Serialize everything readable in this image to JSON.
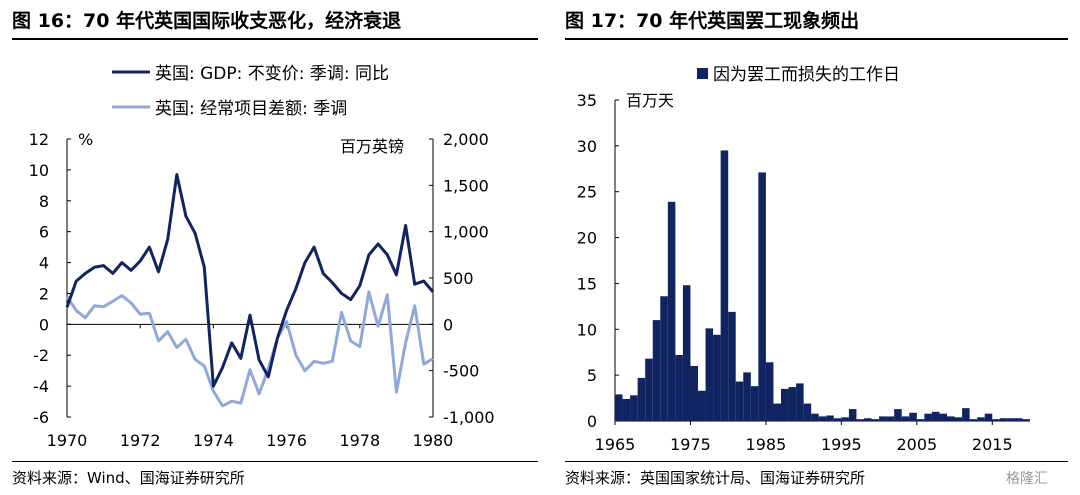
{
  "left_panel": {
    "title": "图 16：70 年代英国国际收支恶化，经济衰退",
    "source": "资料来源：Wind、国海证券研究所"
  },
  "right_panel": {
    "title": "图 17：70 年代英国罢工现象频出",
    "source": "资料来源：英国国家统计局、国海证券研究所"
  },
  "watermark": "格隆汇",
  "colors": {
    "dark_navy": "#0f2461",
    "light_blue": "#8fa9d9",
    "axis": "#000000"
  },
  "chart_data": [
    {
      "type": "line",
      "title": "",
      "x_ticks": [
        "1970",
        "1972",
        "1974",
        "1976",
        "1978",
        "1980"
      ],
      "xlim": [
        1970,
        1980
      ],
      "y_left": {
        "unit": "%",
        "ylim": [
          -6,
          12
        ],
        "ticks": [
          "12",
          "10",
          "8",
          "6",
          "4",
          "2",
          "0",
          "-2",
          "-4",
          "-6"
        ]
      },
      "y_right": {
        "unit": "百万英镑",
        "ylim": [
          -1000,
          2000
        ],
        "ticks": [
          "2,000",
          "1,500",
          "1,000",
          "500",
          "0",
          "-500",
          "-1,000"
        ]
      },
      "legend_position": "top-left",
      "series": [
        {
          "name": "英国: GDP: 不变价: 季调: 同比",
          "axis": "left",
          "color": "#0f2461",
          "x": [
            1970.0,
            1970.25,
            1970.5,
            1970.75,
            1971.0,
            1971.25,
            1971.5,
            1971.75,
            1972.0,
            1972.25,
            1972.5,
            1972.75,
            1973.0,
            1973.25,
            1973.5,
            1973.75,
            1974.0,
            1974.25,
            1974.5,
            1974.75,
            1975.0,
            1975.25,
            1975.5,
            1975.75,
            1976.0,
            1976.25,
            1976.5,
            1976.75,
            1977.0,
            1977.25,
            1977.5,
            1977.75,
            1978.0,
            1978.25,
            1978.5,
            1978.75,
            1979.0,
            1979.25,
            1979.5,
            1979.75,
            1980.0
          ],
          "values": [
            1.1,
            2.8,
            3.3,
            3.7,
            3.8,
            3.3,
            4.0,
            3.5,
            4.1,
            5.0,
            3.4,
            5.5,
            9.7,
            7.0,
            5.9,
            3.7,
            -4.0,
            -2.8,
            -1.2,
            -2.2,
            0.6,
            -2.3,
            -3.4,
            -0.9,
            0.9,
            2.3,
            4.0,
            5.0,
            3.3,
            2.7,
            2.0,
            1.6,
            2.5,
            4.5,
            5.2,
            4.5,
            3.2,
            6.4,
            2.6,
            2.8,
            2.1
          ]
        },
        {
          "name": "英国: 经常项目差额: 季调",
          "axis": "right",
          "color": "#8fa9d9",
          "x": [
            1970.0,
            1970.25,
            1970.5,
            1970.75,
            1971.0,
            1971.25,
            1971.5,
            1971.75,
            1972.0,
            1972.25,
            1972.5,
            1972.75,
            1973.0,
            1973.25,
            1973.5,
            1973.75,
            1974.0,
            1974.25,
            1974.5,
            1974.75,
            1975.0,
            1975.25,
            1975.5,
            1975.75,
            1976.0,
            1976.25,
            1976.5,
            1976.75,
            1977.0,
            1977.25,
            1977.5,
            1977.75,
            1978.0,
            1978.25,
            1978.5,
            1978.75,
            1979.0,
            1979.25,
            1979.5,
            1979.75,
            1980.0
          ],
          "values": [
            300,
            150,
            70,
            200,
            190,
            250,
            310,
            230,
            110,
            120,
            -180,
            -80,
            -250,
            -160,
            -380,
            -450,
            -720,
            -880,
            -830,
            -850,
            -490,
            -750,
            -480,
            -150,
            30,
            -330,
            -500,
            -400,
            -420,
            -400,
            130,
            -180,
            -240,
            350,
            -20,
            320,
            -730,
            -200,
            200,
            -430,
            -370
          ]
        }
      ]
    },
    {
      "type": "bar",
      "title": "",
      "y_unit": "百万天",
      "ylim": [
        0,
        35
      ],
      "y_ticks": [
        "35",
        "30",
        "25",
        "20",
        "15",
        "10",
        "5",
        "0"
      ],
      "x_ticks": [
        "1965",
        "1975",
        "1985",
        "1995",
        "2005",
        "2015"
      ],
      "legend_position": "top",
      "series": [
        {
          "name": "因为罢工而损失的工作日",
          "color": "#0f2461",
          "x": [
            1965,
            1966,
            1967,
            1968,
            1969,
            1970,
            1971,
            1972,
            1973,
            1974,
            1975,
            1976,
            1977,
            1978,
            1979,
            1980,
            1981,
            1982,
            1983,
            1984,
            1985,
            1986,
            1987,
            1988,
            1989,
            1990,
            1991,
            1992,
            1993,
            1994,
            1995,
            1996,
            1997,
            1998,
            1999,
            2000,
            2001,
            2002,
            2003,
            2004,
            2005,
            2006,
            2007,
            2008,
            2009,
            2010,
            2011,
            2012,
            2013,
            2014,
            2015,
            2016,
            2017,
            2018,
            2019
          ],
          "values": [
            2.9,
            2.4,
            2.8,
            4.7,
            6.8,
            11.0,
            13.6,
            23.9,
            7.2,
            14.8,
            6.0,
            3.3,
            10.1,
            9.4,
            29.5,
            11.9,
            4.3,
            5.3,
            3.8,
            27.1,
            6.4,
            1.9,
            3.5,
            3.7,
            4.1,
            1.9,
            0.8,
            0.5,
            0.6,
            0.3,
            0.4,
            1.3,
            0.2,
            0.3,
            0.2,
            0.5,
            0.5,
            1.3,
            0.5,
            0.9,
            0.2,
            0.8,
            1.0,
            0.8,
            0.5,
            0.4,
            1.4,
            0.2,
            0.4,
            0.8,
            0.2,
            0.3,
            0.3,
            0.3,
            0.2
          ]
        }
      ]
    }
  ]
}
